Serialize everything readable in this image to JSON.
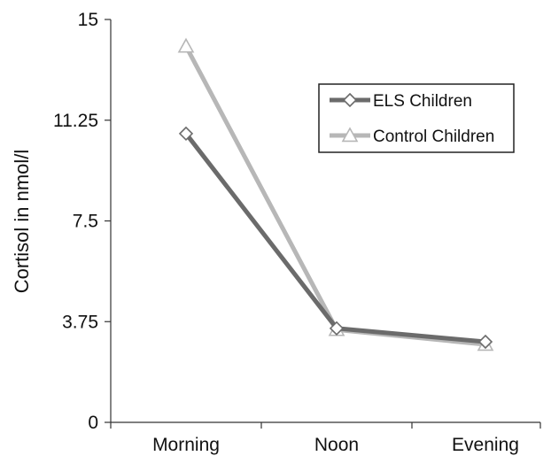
{
  "chart_data": {
    "type": "line",
    "categories": [
      "Morning",
      "Noon",
      "Evening"
    ],
    "ylabel": "Cortisol in nmol/l",
    "xlabel": "",
    "ylim": [
      0,
      15
    ],
    "yticks": [
      "0",
      "3.75",
      "7.5",
      "11.25",
      "15"
    ],
    "grid": false,
    "legend_position": "top-right",
    "series": [
      {
        "name": "ELS Children",
        "values": [
          10.75,
          3.5,
          3.0
        ],
        "color": "#6b6b6b",
        "marker": "diamond"
      },
      {
        "name": "Control Children",
        "values": [
          14.0,
          3.45,
          2.9
        ],
        "color": "#b7b7b7",
        "marker": "triangle"
      }
    ]
  }
}
